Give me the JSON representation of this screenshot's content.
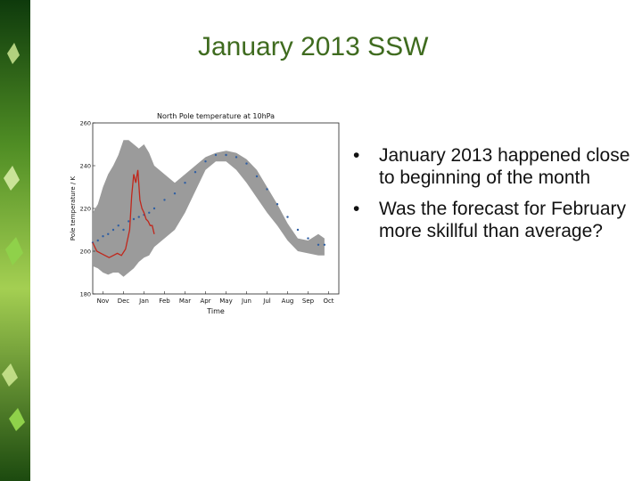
{
  "slide": {
    "title": "January 2013 SSW",
    "bullets": [
      "January 2013 happened close to beginning of the month",
      "Was the forecast for February more skillful than average?"
    ],
    "bullet_glyph": "•"
  },
  "colors": {
    "title": "#3f6b1f",
    "spread": "#9b9b9b",
    "climatology": "#2f5fa3",
    "observed_2013": "#c0271c",
    "leaf": "#7fbf3a"
  },
  "chart_data": {
    "type": "area",
    "title": "North Pole temperature at 10hPa",
    "xlabel": "Time",
    "ylabel": "Pole temperature / K",
    "x_ticks": [
      "Nov",
      "Dec",
      "Jan",
      "Feb",
      "Mar",
      "Apr",
      "May",
      "Jun",
      "Jul",
      "Aug",
      "Sep",
      "Oct"
    ],
    "y_ticks": [
      180,
      200,
      220,
      240,
      260
    ],
    "xlim": [
      0,
      12
    ],
    "ylim": [
      180,
      260
    ],
    "series": [
      {
        "style": "band",
        "x": [
          0,
          0.25,
          0.5,
          0.75,
          1,
          1.25,
          1.5,
          1.75,
          2,
          2.25,
          2.5,
          2.75,
          3,
          3.5,
          4,
          4.5,
          5,
          5.5,
          6,
          6.5,
          7,
          7.5,
          8,
          8.5,
          9,
          9.5,
          10,
          10.5,
          11,
          11.3
        ],
        "upper": [
          218,
          222,
          230,
          236,
          240,
          245,
          252,
          252,
          250,
          248,
          250,
          246,
          240,
          236,
          232,
          236,
          240,
          244,
          246,
          247,
          246,
          243,
          238,
          230,
          222,
          213,
          206,
          205,
          208,
          206
        ],
        "lower": [
          193,
          192,
          190,
          189,
          190,
          190,
          188,
          190,
          192,
          195,
          197,
          198,
          202,
          206,
          210,
          218,
          228,
          238,
          242,
          242,
          238,
          232,
          225,
          218,
          212,
          205,
          200,
          199,
          198,
          198
        ]
      },
      {
        "style": "dots",
        "x": [
          0,
          0.25,
          0.5,
          0.75,
          1,
          1.25,
          1.5,
          1.75,
          2,
          2.25,
          2.5,
          2.75,
          3,
          3.5,
          4,
          4.5,
          5,
          5.5,
          6,
          6.5,
          7,
          7.5,
          8,
          8.5,
          9,
          9.5,
          10,
          10.5,
          11,
          11.3
        ],
        "values": [
          204,
          205,
          207,
          208,
          210,
          212,
          210,
          214,
          215,
          216,
          217,
          218,
          220,
          224,
          227,
          232,
          237,
          242,
          245,
          245,
          244,
          241,
          235,
          229,
          222,
          216,
          210,
          206,
          203,
          203
        ]
      },
      {
        "style": "line",
        "x": [
          0,
          0.2,
          0.4,
          0.6,
          0.8,
          1,
          1.2,
          1.4,
          1.6,
          1.8,
          1.9,
          2,
          2.1,
          2.2,
          2.3,
          2.4,
          2.5,
          2.6,
          2.7,
          2.8,
          2.9,
          3
        ],
        "values": [
          204,
          200,
          199,
          198,
          197,
          198,
          199,
          198,
          201,
          210,
          226,
          236,
          232,
          238,
          224,
          220,
          218,
          215,
          214,
          212,
          212,
          208
        ]
      }
    ]
  }
}
